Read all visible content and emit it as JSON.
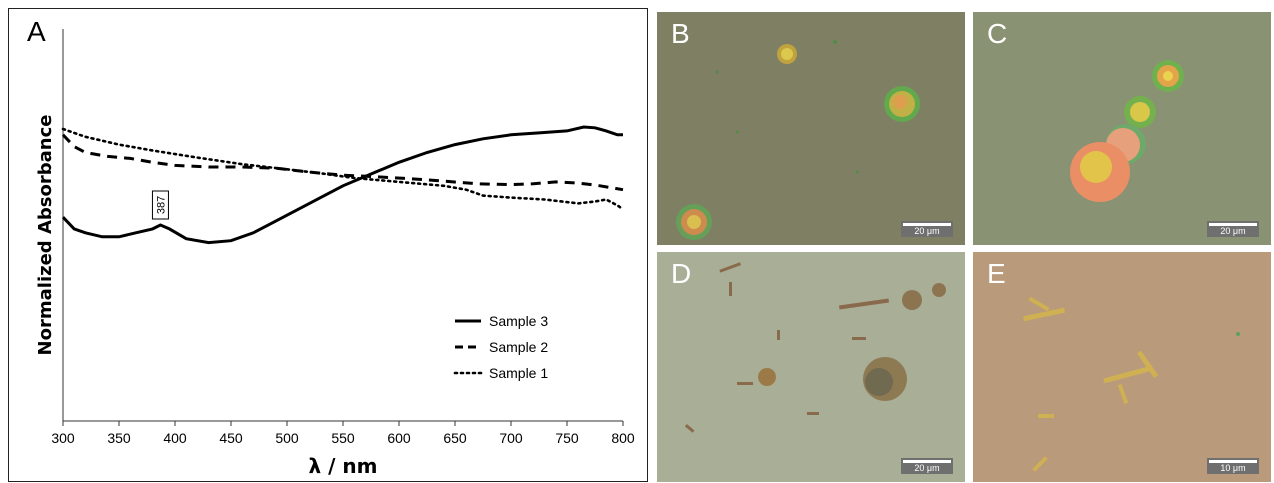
{
  "chart_data": {
    "type": "line",
    "panel_label": "A",
    "xlabel": "λ / nm",
    "ylabel": "Normalized Absorbance",
    "xlim": [
      300,
      800
    ],
    "x_ticks": [
      300,
      350,
      400,
      450,
      500,
      550,
      600,
      650,
      700,
      750,
      800
    ],
    "y_ticks": false,
    "grid": false,
    "legend_position": "bottom-right",
    "annotation": {
      "text": "387",
      "x": 387
    },
    "series": [
      {
        "name": "Sample 3",
        "style": "solid",
        "points": [
          [
            300,
            0.52
          ],
          [
            310,
            0.49
          ],
          [
            320,
            0.48
          ],
          [
            335,
            0.47
          ],
          [
            350,
            0.47
          ],
          [
            365,
            0.48
          ],
          [
            380,
            0.49
          ],
          [
            387,
            0.5
          ],
          [
            395,
            0.49
          ],
          [
            410,
            0.465
          ],
          [
            430,
            0.455
          ],
          [
            450,
            0.46
          ],
          [
            470,
            0.48
          ],
          [
            490,
            0.51
          ],
          [
            510,
            0.54
          ],
          [
            530,
            0.57
          ],
          [
            550,
            0.6
          ],
          [
            575,
            0.63
          ],
          [
            600,
            0.66
          ],
          [
            625,
            0.685
          ],
          [
            650,
            0.705
          ],
          [
            675,
            0.72
          ],
          [
            700,
            0.73
          ],
          [
            725,
            0.735
          ],
          [
            750,
            0.74
          ],
          [
            765,
            0.75
          ],
          [
            775,
            0.748
          ],
          [
            785,
            0.74
          ],
          [
            795,
            0.73
          ],
          [
            800,
            0.73
          ]
        ]
      },
      {
        "name": "Sample 2",
        "style": "dashed",
        "points": [
          [
            300,
            0.73
          ],
          [
            310,
            0.7
          ],
          [
            320,
            0.685
          ],
          [
            340,
            0.675
          ],
          [
            360,
            0.67
          ],
          [
            380,
            0.66
          ],
          [
            400,
            0.652
          ],
          [
            430,
            0.648
          ],
          [
            460,
            0.648
          ],
          [
            490,
            0.645
          ],
          [
            520,
            0.635
          ],
          [
            550,
            0.627
          ],
          [
            580,
            0.623
          ],
          [
            610,
            0.618
          ],
          [
            640,
            0.612
          ],
          [
            670,
            0.605
          ],
          [
            700,
            0.603
          ],
          [
            720,
            0.605
          ],
          [
            740,
            0.61
          ],
          [
            760,
            0.607
          ],
          [
            775,
            0.602
          ],
          [
            790,
            0.595
          ],
          [
            800,
            0.59
          ]
        ]
      },
      {
        "name": "Sample 1",
        "style": "dotted",
        "points": [
          [
            300,
            0.745
          ],
          [
            320,
            0.725
          ],
          [
            350,
            0.705
          ],
          [
            380,
            0.69
          ],
          [
            420,
            0.672
          ],
          [
            460,
            0.655
          ],
          [
            500,
            0.642
          ],
          [
            530,
            0.632
          ],
          [
            560,
            0.62
          ],
          [
            600,
            0.61
          ],
          [
            640,
            0.6
          ],
          [
            660,
            0.59
          ],
          [
            675,
            0.575
          ],
          [
            700,
            0.57
          ],
          [
            730,
            0.565
          ],
          [
            760,
            0.555
          ],
          [
            775,
            0.56
          ],
          [
            785,
            0.565
          ],
          [
            795,
            0.55
          ],
          [
            800,
            0.54
          ]
        ]
      }
    ]
  },
  "micrographs": [
    {
      "label": "B",
      "scale": "20 μm",
      "bg": "#7e7f63"
    },
    {
      "label": "C",
      "scale": "20 μm",
      "bg": "#8a9274"
    },
    {
      "label": "D",
      "scale": "20 μm",
      "bg": "#a9ae96"
    },
    {
      "label": "E",
      "scale": "10 μm",
      "bg": "#b99a7b"
    }
  ]
}
